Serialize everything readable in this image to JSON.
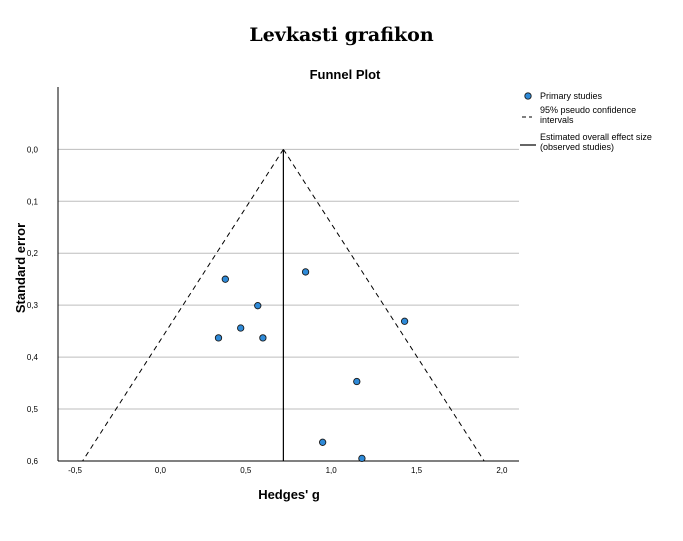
{
  "page_title": "Levkasti grafikon",
  "chart_data": {
    "type": "scatter",
    "title": "Funnel Plot",
    "xlabel": "Hedges' g",
    "ylabel": "Standard error",
    "xlim": [
      -0.6,
      2.1
    ],
    "ylim": [
      0.6,
      -0.12
    ],
    "y_reversed": true,
    "x_ticks": [
      "-0,5",
      "0,0",
      "0,5",
      "1,0",
      "1,5",
      "2,0"
    ],
    "x_tick_values": [
      -0.5,
      0.0,
      0.5,
      1.0,
      1.5,
      2.0
    ],
    "y_ticks": [
      "0,0",
      "0,1",
      "0,2",
      "0,3",
      "0,4",
      "0,5",
      "0,6"
    ],
    "y_tick_values": [
      0.0,
      0.1,
      0.2,
      0.3,
      0.4,
      0.5,
      0.6
    ],
    "horizontal_grid": true,
    "legend_position": "top-right",
    "overall_effect": 0.72,
    "series": [
      {
        "name": "Primary studies",
        "color": "#2e8ad8",
        "points": [
          {
            "x": 0.38,
            "y": 0.25
          },
          {
            "x": 0.85,
            "y": 0.236
          },
          {
            "x": 0.57,
            "y": 0.301
          },
          {
            "x": 1.43,
            "y": 0.331
          },
          {
            "x": 0.47,
            "y": 0.344
          },
          {
            "x": 0.34,
            "y": 0.363
          },
          {
            "x": 0.6,
            "y": 0.363
          },
          {
            "x": 1.15,
            "y": 0.447
          },
          {
            "x": 0.95,
            "y": 0.564
          },
          {
            "x": 1.18,
            "y": 0.595
          }
        ]
      }
    ],
    "legend": [
      {
        "label": "Primary studies",
        "kind": "marker"
      },
      {
        "label_lines": [
          "95% pseudo confidence",
          "intervals"
        ],
        "kind": "dashed"
      },
      {
        "label_lines": [
          "Estimated overall effect size",
          "(observed studies)"
        ],
        "kind": "solid"
      }
    ]
  }
}
